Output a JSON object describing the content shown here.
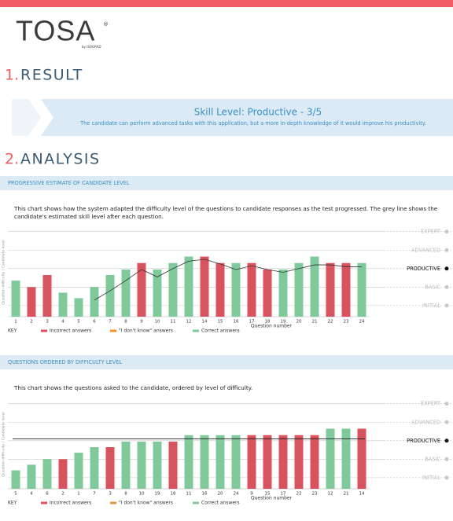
{
  "header": {
    "logo": "TOSA",
    "logo_mark": "®",
    "logo_sub": "by ISOGRAD"
  },
  "result": {
    "heading_number": "1.",
    "heading": "RESULT",
    "skill_level": "Skill Level: Productive - 3/5",
    "description": "The candidate can perform advanced tasks with this application, but a more in-depth knowledge of it would improve his productivity."
  },
  "analysis": {
    "heading_number": "2.",
    "heading": "ANALYSIS"
  },
  "chart_data": [
    {
      "type": "bar",
      "title": "PROGRESSIVE ESTIMATE OF CANDIDATE LEVEL",
      "subtitle": "This chart shows how the system adapted the difficulty level of the questions to candidate responses as the test progressed. The grey line shows the candidate's estimated skill level after each question.",
      "categories": [
        "1",
        "2",
        "3",
        "4",
        "5",
        "6",
        "7",
        "8",
        "9",
        "10",
        "11",
        "12",
        "14",
        "15",
        "16",
        "17",
        "18",
        "19",
        "20",
        "21",
        "22",
        "23",
        "24"
      ],
      "values": [
        2.35,
        2.0,
        2.65,
        1.7,
        1.4,
        2.0,
        2.65,
        2.95,
        3.3,
        2.95,
        3.3,
        3.65,
        3.65,
        3.3,
        3.3,
        3.3,
        2.95,
        2.95,
        3.3,
        3.65,
        3.3,
        3.3,
        3.3
      ],
      "colors": [
        "#7fc99a",
        "#d9535f",
        "#d9535f",
        "#7fc99a",
        "#7fc99a",
        "#7fc99a",
        "#7fc99a",
        "#7fc99a",
        "#d9535f",
        "#7fc99a",
        "#7fc99a",
        "#7fc99a",
        "#d9535f",
        "#d9535f",
        "#7fc99a",
        "#d9535f",
        "#d9535f",
        "#7fc99a",
        "#7fc99a",
        "#7fc99a",
        "#d9535f",
        "#d9535f",
        "#7fc99a"
      ],
      "line": {
        "color": "#333333",
        "values": [
          null,
          null,
          null,
          null,
          null,
          1.3,
          1.8,
          2.35,
          2.95,
          2.55,
          3.0,
          3.4,
          3.5,
          3.25,
          2.95,
          3.15,
          2.95,
          2.8,
          3.0,
          3.2,
          3.2,
          3.1,
          3.1
        ]
      },
      "ylim": [
        0.4,
        5.2
      ],
      "yticks": [
        {
          "value": 1,
          "label": "INITIAL"
        },
        {
          "value": 2,
          "label": "BASIC"
        },
        {
          "value": 3,
          "label": "PRODUCTIVE"
        },
        {
          "value": 4,
          "label": "ADVANCED"
        },
        {
          "value": 5,
          "label": "EXPERT"
        }
      ],
      "highlight_tick": 3,
      "x_label": "Question number",
      "y_label": "Question difficulty / Candidate level",
      "legend_title": "KEY",
      "legend": [
        {
          "name": "Incorrect answers",
          "color": "#d9535f"
        },
        {
          "name": "\"I don't know\" answers",
          "color": "#f0922e"
        },
        {
          "name": "Correct answers",
          "color": "#7fc99a"
        }
      ]
    },
    {
      "type": "bar",
      "title": "QUESTIONS ORDERED BY DIFFICULTY LEVEL",
      "subtitle": "This chart shows the questions asked to the candidate, ordered by level of difficulty.",
      "categories": [
        "5",
        "4",
        "6",
        "2",
        "1",
        "7",
        "3",
        "8",
        "10",
        "19",
        "18",
        "11",
        "16",
        "20",
        "24",
        "9",
        "15",
        "17",
        "22",
        "23",
        "12",
        "21",
        "14"
      ],
      "values": [
        1.4,
        1.7,
        2.0,
        2.0,
        2.35,
        2.65,
        2.65,
        2.95,
        2.95,
        2.95,
        2.95,
        3.3,
        3.3,
        3.3,
        3.3,
        3.3,
        3.3,
        3.3,
        3.3,
        3.3,
        3.65,
        3.65,
        3.65
      ],
      "colors": [
        "#7fc99a",
        "#7fc99a",
        "#7fc99a",
        "#d9535f",
        "#7fc99a",
        "#7fc99a",
        "#d9535f",
        "#7fc99a",
        "#7fc99a",
        "#7fc99a",
        "#d9535f",
        "#7fc99a",
        "#7fc99a",
        "#7fc99a",
        "#7fc99a",
        "#d9535f",
        "#d9535f",
        "#d9535f",
        "#d9535f",
        "#d9535f",
        "#7fc99a",
        "#7fc99a",
        "#d9535f"
      ],
      "hline": {
        "value": 3.1,
        "color": "#222222"
      },
      "ylim": [
        0.4,
        5.2
      ],
      "yticks": [
        {
          "value": 1,
          "label": "INITIAL"
        },
        {
          "value": 2,
          "label": "BASIC"
        },
        {
          "value": 3,
          "label": "PRODUCTIVE"
        },
        {
          "value": 4,
          "label": "ADVANCED"
        },
        {
          "value": 5,
          "label": "EXPERT"
        }
      ],
      "highlight_tick": 3,
      "x_label": "Question number",
      "y_label": "Question difficulty / Candidate level",
      "legend_title": "KEY",
      "legend": [
        {
          "name": "Incorrect answers",
          "color": "#d9535f"
        },
        {
          "name": "\"I don't know\" answers",
          "color": "#f0922e"
        },
        {
          "name": "Correct answers",
          "color": "#7fc99a"
        }
      ]
    }
  ]
}
